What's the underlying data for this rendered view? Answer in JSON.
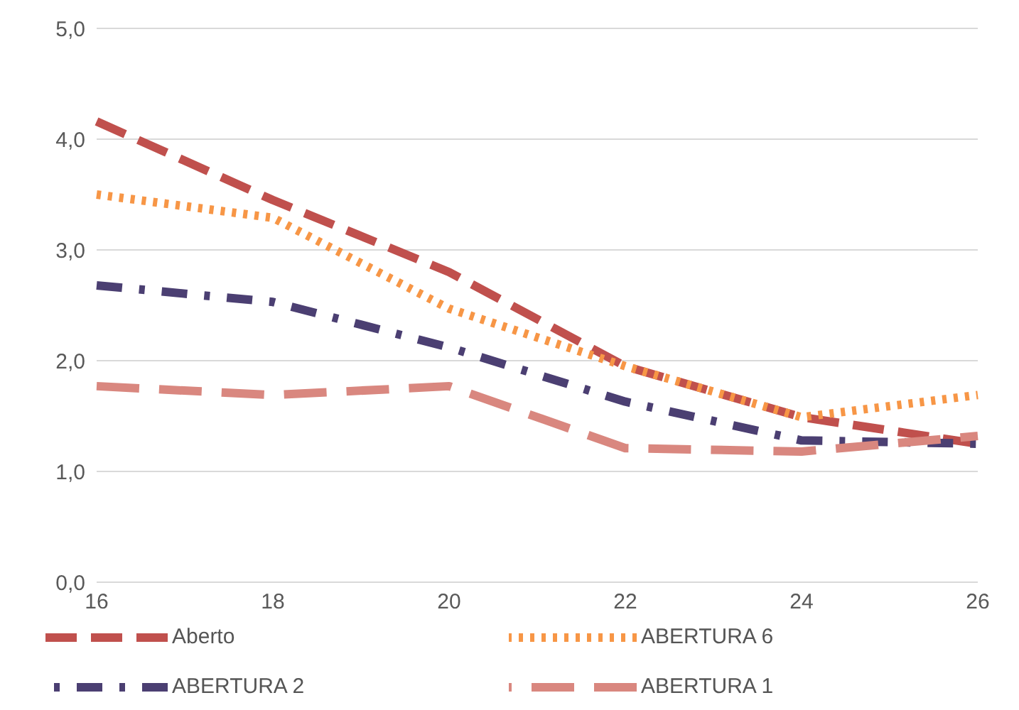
{
  "chart_data": {
    "type": "line",
    "categories": [
      "16",
      "18",
      "20",
      "22",
      "24",
      "26"
    ],
    "series": [
      {
        "name": "Aberto",
        "color": "#c0504d",
        "line_style": "dashed",
        "values": [
          4.16,
          3.45,
          2.8,
          1.95,
          1.49,
          1.25
        ]
      },
      {
        "name": "ABERTURA 6",
        "color": "#f79646",
        "line_style": "dotted",
        "values": [
          3.5,
          3.29,
          2.47,
          1.95,
          1.49,
          1.69
        ]
      },
      {
        "name": "ABERTURA 2",
        "color": "#4b3f72",
        "line_style": "dashdot",
        "values": [
          2.68,
          2.53,
          2.12,
          1.63,
          1.28,
          1.25
        ]
      },
      {
        "name": "ABERTURA 1",
        "color": "#d9877f",
        "line_style": "longdash",
        "values": [
          1.77,
          1.69,
          1.77,
          1.21,
          1.18,
          1.32
        ]
      }
    ],
    "ylim": [
      0,
      5
    ],
    "yticks": [
      {
        "value": 0,
        "label": "0,0"
      },
      {
        "value": 1,
        "label": "1,0"
      },
      {
        "value": 2,
        "label": "2,0"
      },
      {
        "value": 3,
        "label": "3,0"
      },
      {
        "value": 4,
        "label": "4,0"
      },
      {
        "value": 5,
        "label": "5,0"
      }
    ],
    "grid": "y",
    "legend": "bottom",
    "marker": "none"
  }
}
